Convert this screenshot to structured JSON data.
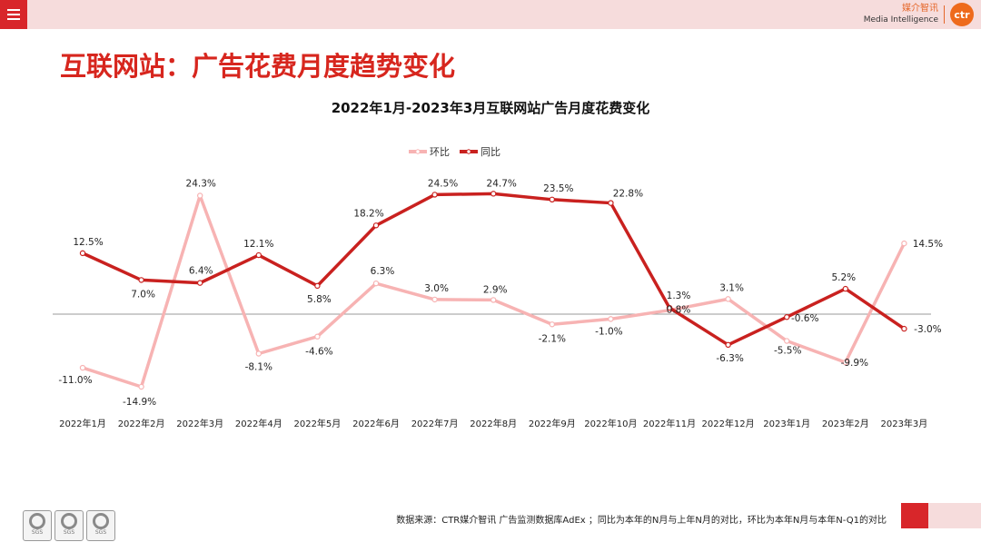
{
  "header": {
    "menu_icon": "hamburger-menu-icon",
    "brand_cn": "媒介智讯",
    "brand_en": "Media Intelligence",
    "brand_logo": "ctr",
    "accent_color": "#d8262a",
    "band_color": "#f6dcdc"
  },
  "page_title": "互联网站：广告花费月度趋势变化",
  "chart_data": {
    "type": "line",
    "title": "2022年1月-2023年3月互联网站广告月度花费变化",
    "categories": [
      "2022年1月",
      "2022年2月",
      "2022年3月",
      "2022年4月",
      "2022年5月",
      "2022年6月",
      "2022年7月",
      "2022年8月",
      "2022年9月",
      "2022年10月",
      "2022年11月",
      "2022年12月",
      "2023年1月",
      "2023年2月",
      "2023年3月"
    ],
    "series": [
      {
        "name": "环比",
        "color": "#f7b3b3",
        "values": [
          -11.0,
          -14.9,
          24.3,
          -8.1,
          -4.6,
          6.3,
          3.0,
          2.9,
          -2.1,
          -1.0,
          0.8,
          3.1,
          -5.5,
          -9.9,
          14.5
        ],
        "labels": [
          "-11.0%",
          "-14.9%",
          "24.3%",
          "-8.1%",
          "-4.6%",
          "6.3%",
          "3.0%",
          "2.9%",
          "-2.1%",
          "-1.0%",
          "0.8%",
          "3.1%",
          "-5.5%",
          "-9.9%",
          "14.5%"
        ]
      },
      {
        "name": "同比",
        "color": "#c9211f",
        "values": [
          12.5,
          7.0,
          6.4,
          12.1,
          5.8,
          18.2,
          24.5,
          24.7,
          23.5,
          22.8,
          1.3,
          -6.3,
          -0.6,
          5.2,
          -3.0
        ],
        "labels": [
          "12.5%",
          "7.0%",
          "6.4%",
          "12.1%",
          "5.8%",
          "18.2%",
          "24.5%",
          "24.7%",
          "23.5%",
          "22.8%",
          "1.3%",
          "-6.3%",
          "-0.6%",
          "5.2%",
          "-3.0%"
        ]
      }
    ],
    "legend_position": "top",
    "grid": false,
    "zero_line": true
  },
  "footer": {
    "source_note": "数据来源：CTR媒介智讯 广告监测数据库AdEx ；同比为本年的N月与上年N月的对比，环比为本年N月与本年N-Q1的对比",
    "seals": [
      "SGS",
      "SGS",
      "SGS"
    ]
  }
}
